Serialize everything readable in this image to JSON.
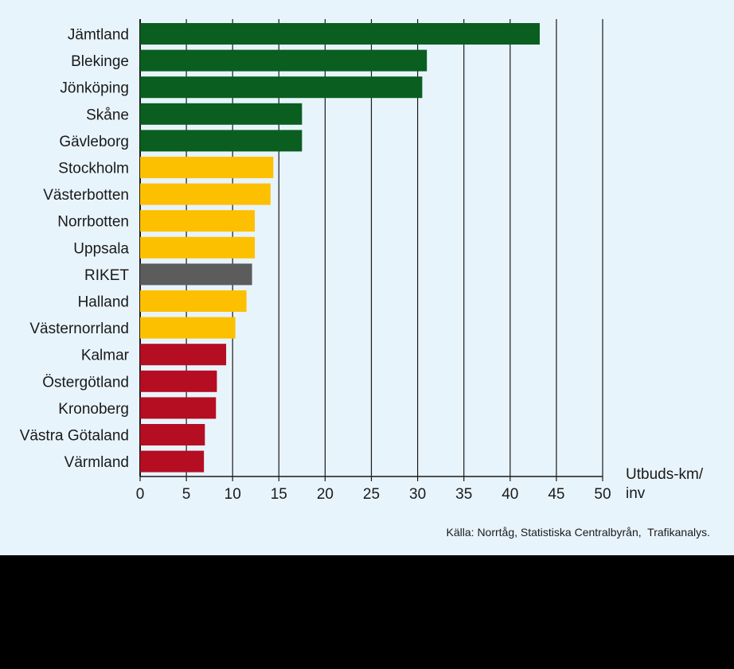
{
  "colors": {
    "panel_background": "#e8f4fc",
    "high": "#0a5e1f",
    "medium": "#fcc000",
    "national": "#5c5c5c",
    "low": "#b50d22",
    "axis": "#1a1a1a",
    "bottom_band": "#000000"
  },
  "chart_data": {
    "type": "bar",
    "orientation": "horizontal",
    "title": "",
    "xlabel_lines": [
      "Utbuds-km/",
      "inv"
    ],
    "ylabel": "",
    "xlim": [
      0,
      50
    ],
    "xticks": [
      0,
      5,
      10,
      15,
      20,
      25,
      30,
      35,
      40,
      45,
      50
    ],
    "grid": "vertical lines at each x tick",
    "legend": "none",
    "bars": [
      {
        "label": "Jämtland",
        "value": 43.2,
        "group": "high"
      },
      {
        "label": "Blekinge",
        "value": 31.0,
        "group": "high"
      },
      {
        "label": "Jönköping",
        "value": 30.5,
        "group": "high"
      },
      {
        "label": "Skåne",
        "value": 17.5,
        "group": "high"
      },
      {
        "label": "Gävleborg",
        "value": 17.5,
        "group": "high"
      },
      {
        "label": "Stockholm",
        "value": 14.4,
        "group": "medium"
      },
      {
        "label": "Västerbotten",
        "value": 14.1,
        "group": "medium"
      },
      {
        "label": "Norrbotten",
        "value": 12.4,
        "group": "medium"
      },
      {
        "label": "Uppsala",
        "value": 12.4,
        "group": "medium"
      },
      {
        "label": "RIKET",
        "value": 12.1,
        "group": "national"
      },
      {
        "label": "Halland",
        "value": 11.5,
        "group": "medium"
      },
      {
        "label": "Västernorrland",
        "value": 10.3,
        "group": "medium"
      },
      {
        "label": "Kalmar",
        "value": 9.3,
        "group": "low"
      },
      {
        "label": "Östergötland",
        "value": 8.3,
        "group": "low"
      },
      {
        "label": "Kronoberg",
        "value": 8.2,
        "group": "low"
      },
      {
        "label": "Västra Götaland",
        "value": 7.0,
        "group": "low"
      },
      {
        "label": "Värmland",
        "value": 6.9,
        "group": "low"
      }
    ]
  },
  "source_note": "Källa: Norrtåg, Statistiska Centralbyrån,  Trafikanalys."
}
